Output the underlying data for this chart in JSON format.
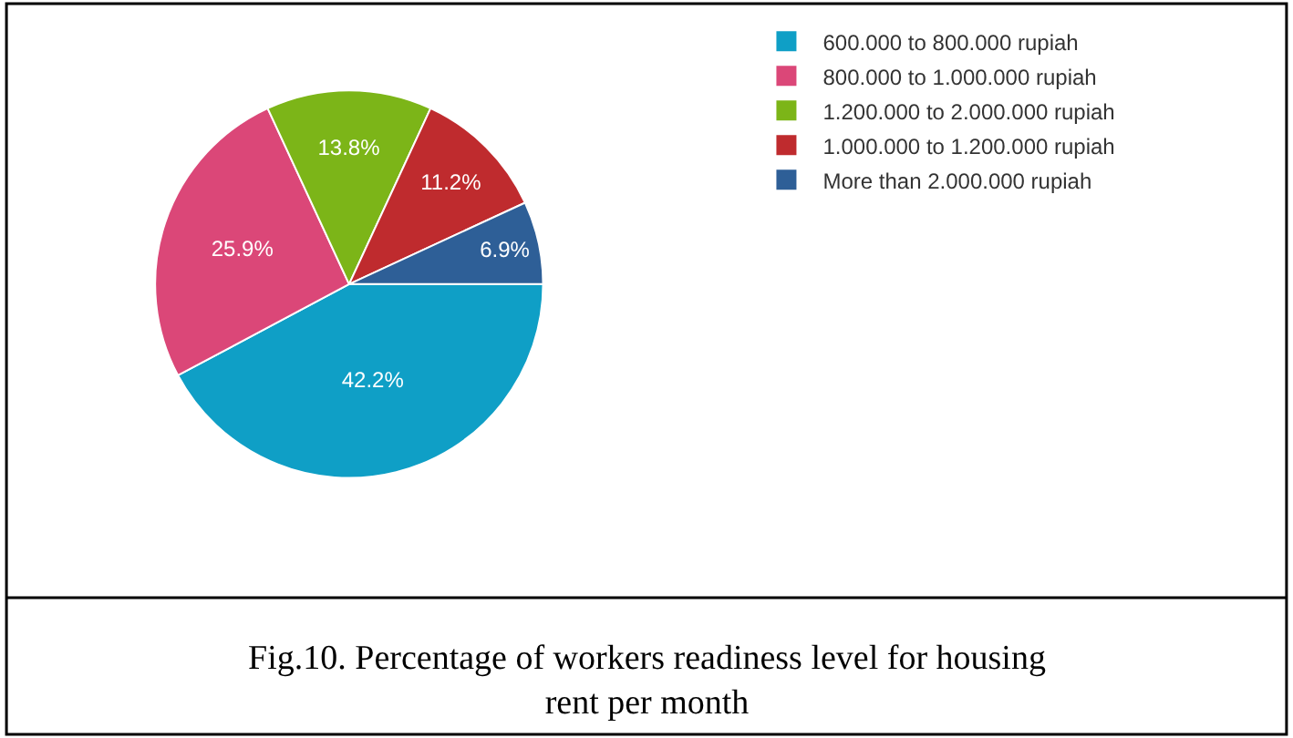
{
  "chart_data": {
    "type": "pie",
    "categories": [
      "600.000 to 800.000 rupiah",
      "800.000 to 1.000.000 rupiah",
      "1.200.000 to 2.000.000 rupiah",
      "1.000.000 to 1.200.000 rupiah",
      "More than 2.000.000 rupiah"
    ],
    "values": [
      42.2,
      25.9,
      13.8,
      11.2,
      6.9
    ],
    "colors": [
      "#0f9fc6",
      "#db4778",
      "#7cb518",
      "#bf2b2e",
      "#2e5f97"
    ],
    "value_labels": [
      "42.2%",
      "25.9%",
      "13.8%",
      "11.2%",
      "6.9%"
    ],
    "legend": "top right",
    "annotations": [
      "Fig.10. Percentage of workers readiness level for housing rent per month"
    ]
  }
}
